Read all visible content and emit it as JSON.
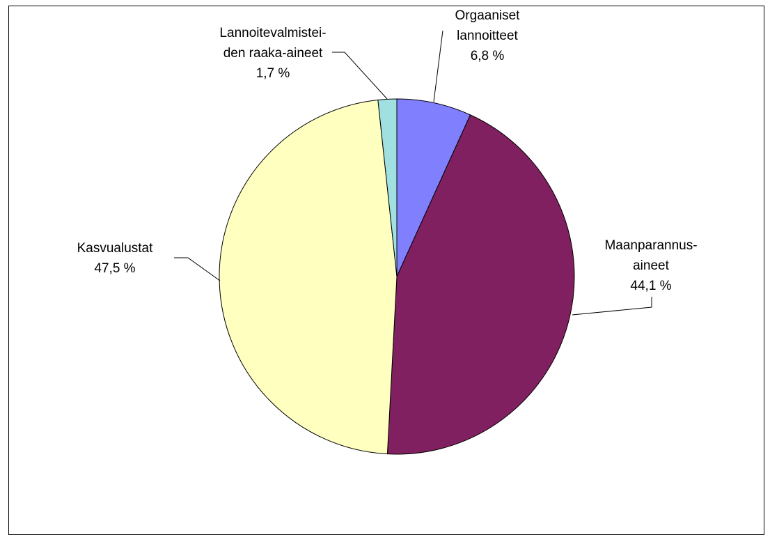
{
  "chart_data": {
    "type": "pie",
    "categories": [
      "Orgaaniset\nlannoitteet",
      "Maanparannus-\naineet",
      "Kasvualustat",
      "Lannoitevalmistei-\nden raaka-aineet"
    ],
    "values": [
      6.8,
      44.1,
      47.5,
      1.7
    ],
    "value_labels": [
      "6,8 %",
      "44,1 %",
      "47,5 %",
      "1,7 %"
    ],
    "colors": [
      "#8080ff",
      "#802060",
      "#ffffc0",
      "#a0e0e0"
    ]
  }
}
